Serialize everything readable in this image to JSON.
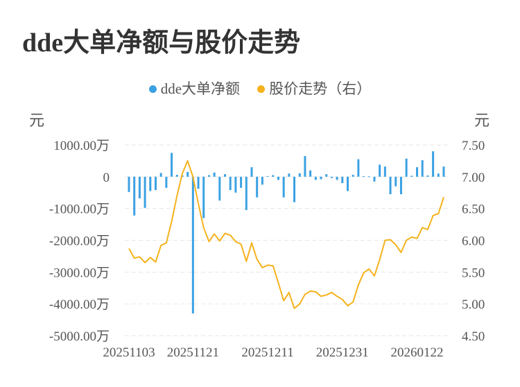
{
  "chart_data": {
    "type": "bar+line",
    "title": "dde大单净额与股价走势",
    "legend": [
      {
        "name": "dde大单净额",
        "color": "#3ba1e3"
      },
      {
        "name": "股价走势（右）",
        "color": "#f5b21c"
      }
    ],
    "left_unit": "元",
    "right_unit": "元",
    "left_ticks": [
      "1000.00万",
      "0",
      "-1000.00万",
      "-2000.00万",
      "-3000.00万",
      "-4000.00万",
      "-5000.00万"
    ],
    "left_tick_values": [
      1000,
      0,
      -1000,
      -2000,
      -3000,
      -4000,
      -5000
    ],
    "right_ticks": [
      "7.50",
      "7.00",
      "6.50",
      "6.00",
      "5.50",
      "5.00",
      "4.50"
    ],
    "right_tick_values": [
      7.5,
      7.0,
      6.5,
      6.0,
      5.5,
      5.0,
      4.5
    ],
    "x_tick_labels": [
      "20251103",
      "20251121",
      "20251211",
      "20251231",
      "20260122"
    ],
    "x_tick_indices": [
      0,
      12,
      26,
      40,
      54
    ],
    "left_ylim": [
      -5000,
      1000
    ],
    "right_ylim": [
      4.5,
      7.5
    ],
    "grid": true,
    "legend_position": "top",
    "series": [
      {
        "name": "dde大单净额",
        "type": "bar",
        "unit": "万元",
        "values": [
          -480,
          -1220,
          -680,
          -980,
          -450,
          -420,
          120,
          -350,
          750,
          60,
          40,
          150,
          -4300,
          -380,
          -1300,
          50,
          130,
          -750,
          80,
          -420,
          -500,
          -350,
          -1050,
          300,
          -650,
          -250,
          20,
          50,
          -100,
          -650,
          100,
          -800,
          110,
          650,
          200,
          -100,
          -80,
          80,
          -40,
          -100,
          -200,
          -450,
          60,
          550,
          20,
          10,
          -150,
          380,
          320,
          -550,
          -300,
          -550,
          570,
          30,
          300,
          520,
          40,
          800,
          100,
          320
        ]
      },
      {
        "name": "股价走势（右）",
        "type": "line",
        "values": [
          5.87,
          5.72,
          5.74,
          5.65,
          5.73,
          5.66,
          5.92,
          5.96,
          6.3,
          6.7,
          7.05,
          7.25,
          7.0,
          6.58,
          6.2,
          5.98,
          6.1,
          5.99,
          6.11,
          6.08,
          5.98,
          5.94,
          5.67,
          5.96,
          5.7,
          5.57,
          5.61,
          5.6,
          5.33,
          5.05,
          5.18,
          4.93,
          5.0,
          5.15,
          5.2,
          5.19,
          5.12,
          5.14,
          5.18,
          5.12,
          5.07,
          4.97,
          5.03,
          5.3,
          5.49,
          5.55,
          5.44,
          5.7,
          6.0,
          6.01,
          5.93,
          5.81,
          6.0,
          6.05,
          6.03,
          6.2,
          6.17,
          6.39,
          6.42,
          6.68
        ]
      }
    ]
  }
}
